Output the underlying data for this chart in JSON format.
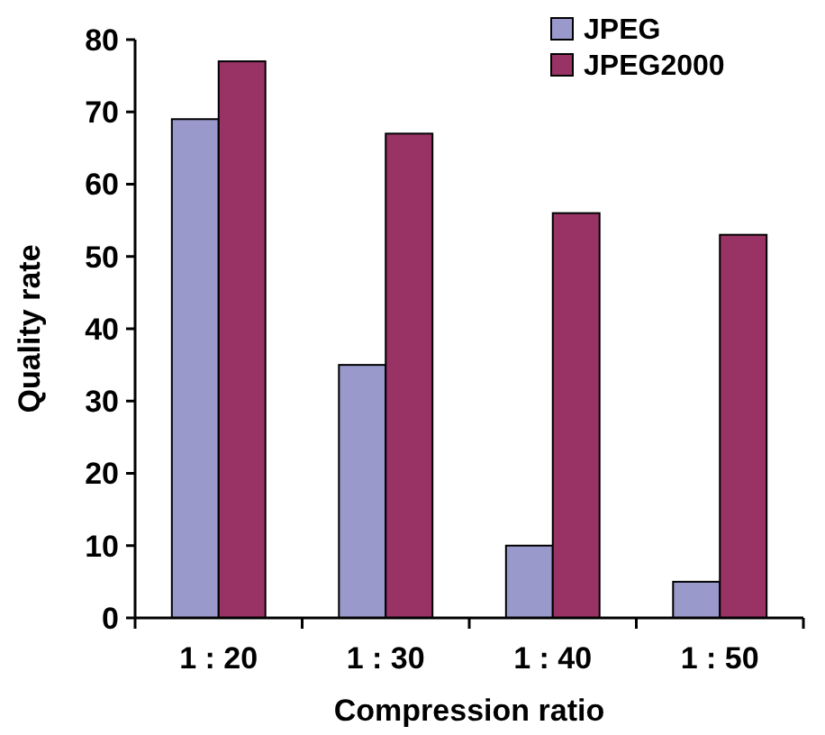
{
  "chart_data": {
    "type": "bar",
    "xlabel": "Compression ratio",
    "ylabel": "Quality rate",
    "categories": [
      "1 : 20",
      "1 : 30",
      "1 : 40",
      "1 : 50"
    ],
    "series": [
      {
        "name": "JPEG",
        "color": "#9999cc",
        "values": [
          69,
          35,
          10,
          5
        ]
      },
      {
        "name": "JPEG2000",
        "color": "#993366",
        "values": [
          77,
          67,
          56,
          53
        ]
      }
    ],
    "ylim": [
      0,
      80
    ],
    "yticks": [
      0,
      10,
      20,
      30,
      40,
      50,
      60,
      70,
      80
    ],
    "grid": false,
    "legend": "top right"
  }
}
